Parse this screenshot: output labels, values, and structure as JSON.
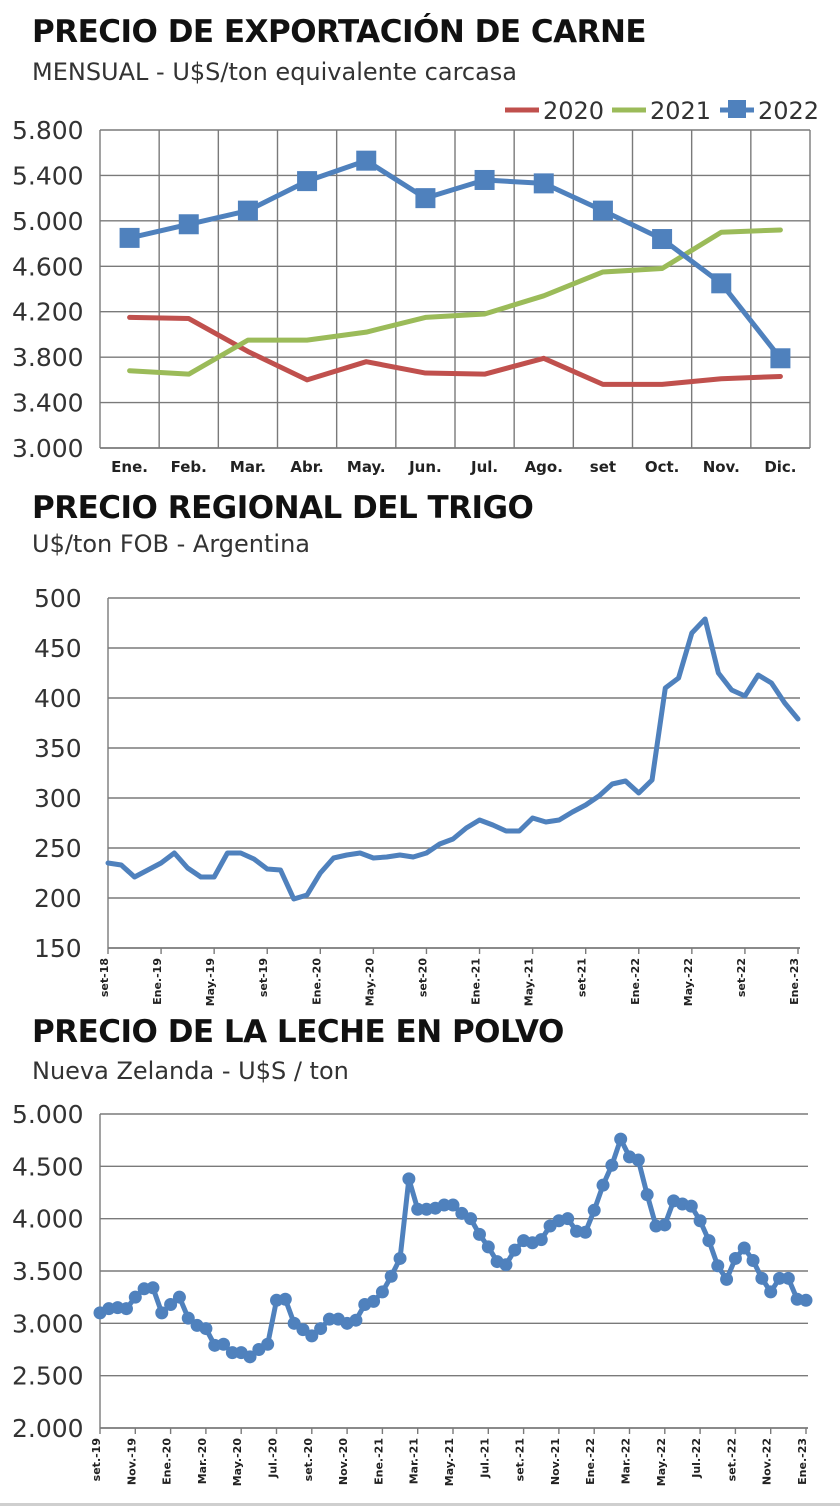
{
  "chart_data": [
    {
      "type": "line",
      "title": "PRECIO DE EXPORTACIÓN DE CARNE",
      "subtitle": "MENSUAL - U$S/ton equivalente carcasa",
      "categories": [
        "Ene.",
        "Feb.",
        "Mar.",
        "Abr.",
        "May.",
        "Jun.",
        "Jul.",
        "Ago.",
        "set",
        "Oct.",
        "Nov.",
        "Dic."
      ],
      "yticks": [
        "5.800",
        "5.400",
        "5.000",
        "4.600",
        "4.200",
        "3.800",
        "3.400",
        "3.000"
      ],
      "ylim": [
        3000,
        5800
      ],
      "grid": true,
      "legend_position": "top-right",
      "series": [
        {
          "name": "2020",
          "color": "#c0504d",
          "marker": "none",
          "values": [
            4150,
            4140,
            3850,
            3600,
            3760,
            3660,
            3650,
            3790,
            3560,
            3560,
            3610,
            3630
          ]
        },
        {
          "name": "2021",
          "color": "#9bbb59",
          "marker": "none",
          "values": [
            3680,
            3650,
            3950,
            3950,
            4020,
            4150,
            4180,
            4340,
            4550,
            4580,
            4900,
            4920
          ]
        },
        {
          "name": "2022",
          "color": "#4f81bd",
          "marker": "square",
          "values": [
            4850,
            4970,
            5090,
            5350,
            5530,
            5200,
            5360,
            5330,
            5090,
            4840,
            4450,
            3790
          ]
        }
      ]
    },
    {
      "type": "line",
      "title": "PRECIO REGIONAL DEL TRIGO",
      "subtitle": "U$/ton FOB - Argentina",
      "yticks": [
        "500",
        "450",
        "400",
        "350",
        "300",
        "250",
        "200",
        "150"
      ],
      "ylim": [
        150,
        500
      ],
      "grid": true,
      "xticks": [
        "set-18",
        "Ene.-19",
        "May.-19",
        "set-19",
        "Ene.-20",
        "May.-20",
        "set-20",
        "Ene.-21",
        "May.-21",
        "set-21",
        "Ene.-22",
        "May.-22",
        "set-22",
        "Ene.-23"
      ],
      "series": [
        {
          "color": "#4f81bd",
          "marker": "none",
          "values": [
            235,
            233,
            221,
            228,
            235,
            245,
            230,
            221,
            221,
            245,
            245,
            239,
            229,
            228,
            199,
            203,
            225,
            240,
            243,
            245,
            240,
            241,
            243,
            241,
            245,
            254,
            259,
            270,
            278,
            273,
            267,
            267,
            280,
            276,
            278,
            286,
            293,
            302,
            314,
            317,
            305,
            318,
            410,
            420,
            465,
            479,
            425,
            408,
            402,
            423,
            415,
            395,
            379
          ]
        }
      ]
    },
    {
      "type": "line",
      "title": "PRECIO DE LA LECHE EN POLVO",
      "subtitle": "Nueva Zelanda - U$S / ton",
      "yticks": [
        "5.000",
        "4.500",
        "4.000",
        "3.500",
        "3.000",
        "2.500",
        "2.000"
      ],
      "ylim": [
        2000,
        5000
      ],
      "grid": true,
      "xticks": [
        "set.-19",
        "Nov.-19",
        "Ene.-20",
        "Mar.-20",
        "May.-20",
        "Jul.-20",
        "set.-20",
        "Nov.-20",
        "Ene.-21",
        "Mar.-21",
        "May.-21",
        "Jul.-21",
        "set.-21",
        "Nov.-21",
        "Ene.-22",
        "Mar.-22",
        "May.-22",
        "Jul.-22",
        "set.-22",
        "Nov.-22",
        "Ene.-23"
      ],
      "series": [
        {
          "color": "#4f81bd",
          "marker": "circle",
          "values": [
            3100,
            3140,
            3150,
            3140,
            3250,
            3330,
            3340,
            3100,
            3180,
            3250,
            3050,
            2980,
            2950,
            2790,
            2800,
            2720,
            2720,
            2680,
            2750,
            2800,
            3220,
            3230,
            3000,
            2940,
            2880,
            2950,
            3040,
            3040,
            3000,
            3030,
            3180,
            3210,
            3300,
            3450,
            3620,
            4380,
            4090,
            4090,
            4100,
            4130,
            4130,
            4050,
            4000,
            3850,
            3730,
            3590,
            3560,
            3700,
            3790,
            3770,
            3800,
            3930,
            3980,
            4000,
            3880,
            3870,
            4080,
            4320,
            4510,
            4760,
            4590,
            4560,
            4230,
            3930,
            3940,
            4170,
            4140,
            4120,
            3980,
            3790,
            3550,
            3420,
            3620,
            3720,
            3600,
            3430,
            3300,
            3430,
            3430,
            3230,
            3220
          ]
        }
      ]
    }
  ]
}
